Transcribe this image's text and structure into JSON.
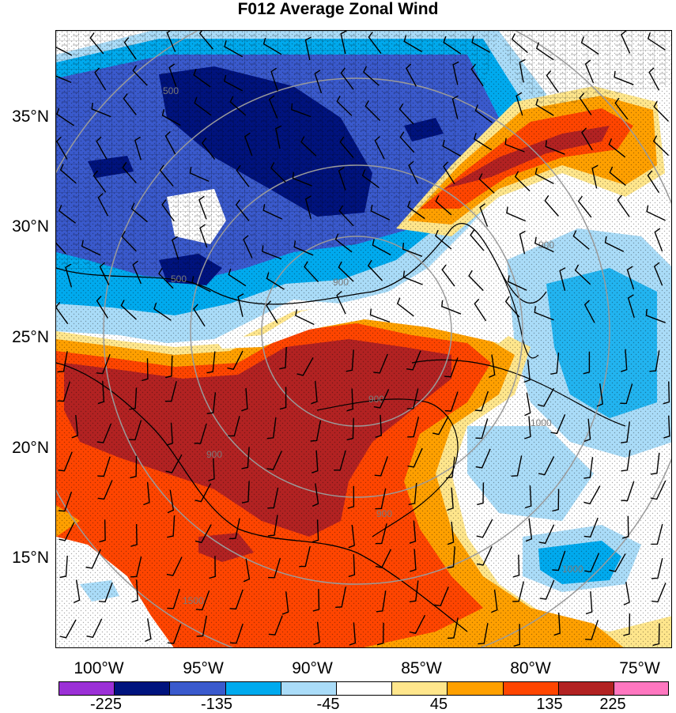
{
  "title": "F012 Average Zonal Wind",
  "lat_labels": [
    "35°N",
    "30°N",
    "25°N",
    "20°N",
    "15°N"
  ],
  "lon_labels": [
    "100°W",
    "95°W",
    "90°W",
    "85°W",
    "80°W",
    "75°W"
  ],
  "colorbar": {
    "colors": [
      "#9b30d6",
      "#00137e",
      "#3a5acd",
      "#00aaee",
      "#aadcf8",
      "#ffffff",
      "#ffe68c",
      "#ffa000",
      "#ff4500",
      "#b22222",
      "#ff77c0"
    ],
    "labels": [
      "-225",
      "-135",
      "-45",
      "45",
      "135",
      "225"
    ]
  },
  "contour_labels": [
    "500",
    "500",
    "900",
    "900",
    "900",
    "900",
    "900",
    "1000",
    "1500",
    "1000"
  ]
}
